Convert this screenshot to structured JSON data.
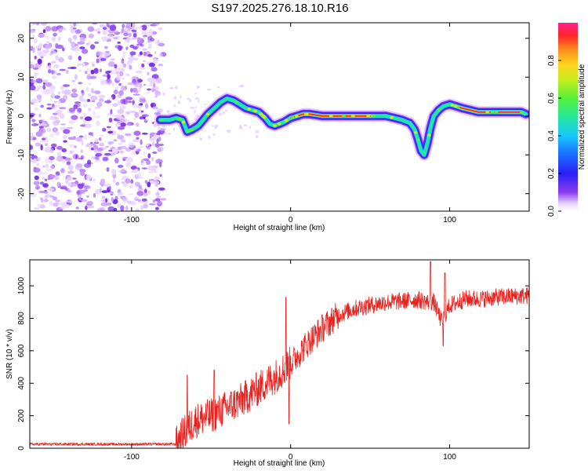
{
  "title": "S197.2025.276.18.10.R16",
  "colors": {
    "line": "#e8221f",
    "axis": "#000000",
    "noise": "#7b2be0",
    "colormap": [
      "#ffffff",
      "#e9d4ff",
      "#cfa4ff",
      "#8a3cf0",
      "#2a20f5",
      "#1b6cff",
      "#19c8ff",
      "#25e89a",
      "#56f03a",
      "#c9ec1d",
      "#ffd21f",
      "#ff8a1e",
      "#ff2626",
      "#ff1f8c"
    ]
  },
  "chart_data": [
    {
      "type": "heatmap",
      "title": "S197.2025.276.18.10.R16",
      "xlabel": "Height of straight line (km)",
      "ylabel": "Frequency (Hz)",
      "xlim": [
        -164,
        150
      ],
      "ylim": [
        -24.5,
        24
      ],
      "xticks": [
        -100,
        0,
        100
      ],
      "yticks": [
        -20,
        -10,
        0,
        10,
        20
      ],
      "noise_region": [
        -164,
        -80
      ],
      "ridge_x": [
        -82,
        -80,
        -76,
        -72,
        -68,
        -65,
        -62,
        -58,
        -55,
        -52,
        -48,
        -44,
        -40,
        -36,
        -32,
        -28,
        -24,
        -20,
        -16,
        -13,
        -10,
        -7,
        -4,
        0,
        4,
        8,
        12,
        20,
        30,
        40,
        50,
        60,
        65,
        70,
        73,
        75,
        78,
        80,
        82,
        84,
        86,
        88,
        90,
        93,
        96,
        100,
        104,
        108,
        113,
        118,
        125,
        135,
        145,
        148
      ],
      "ridge_y": [
        -1,
        -1,
        -1,
        -0.5,
        -1,
        -4,
        -3.5,
        -2.5,
        -1,
        0.5,
        2,
        3.5,
        4.5,
        4,
        3,
        2,
        1.5,
        1,
        -0.5,
        -2,
        -2.5,
        -2,
        -1.5,
        -0.5,
        0,
        0.5,
        0.5,
        0,
        0,
        0,
        0,
        0,
        -0.5,
        -1,
        -1.5,
        -1.8,
        -3.5,
        -6,
        -9,
        -10,
        -7,
        -3,
        0,
        1.5,
        2.5,
        3,
        2.5,
        2,
        1.5,
        1,
        1,
        1,
        1,
        0.5
      ],
      "colorbar": {
        "label": "Normalized spectral amplitude",
        "range": [
          0,
          1
        ],
        "ticks": [
          0.0,
          0.2,
          0.4,
          0.6,
          0.8
        ]
      }
    },
    {
      "type": "line",
      "xlabel": "Height of straight line (km)",
      "ylabel": "SNR (10 * v/v)",
      "xlim": [
        -164,
        150
      ],
      "ylim": [
        0,
        1160
      ],
      "xticks": [
        -100,
        0,
        100
      ],
      "yticks": [
        0,
        200,
        400,
        600,
        800,
        1000
      ],
      "trend_x": [
        -164,
        -72,
        -70,
        -60,
        -50,
        -40,
        -30,
        -20,
        -10,
        0,
        10,
        20,
        30,
        40,
        50,
        60,
        70,
        80,
        86,
        90,
        95,
        100,
        110,
        120,
        130,
        140,
        150
      ],
      "trend_y": [
        25,
        25,
        60,
        170,
        200,
        250,
        300,
        370,
        440,
        520,
        640,
        740,
        820,
        860,
        880,
        900,
        905,
        915,
        900,
        900,
        780,
        880,
        920,
        920,
        930,
        935,
        940
      ],
      "spikes": [
        {
          "x": -65,
          "y": 450
        },
        {
          "x": -48,
          "y": 480
        },
        {
          "x": -3,
          "y": 930
        },
        {
          "x": -1,
          "y": 150
        },
        {
          "x": 88,
          "y": 1150
        },
        {
          "x": 96,
          "y": 630
        },
        {
          "x": 97,
          "y": 1080
        }
      ]
    }
  ]
}
